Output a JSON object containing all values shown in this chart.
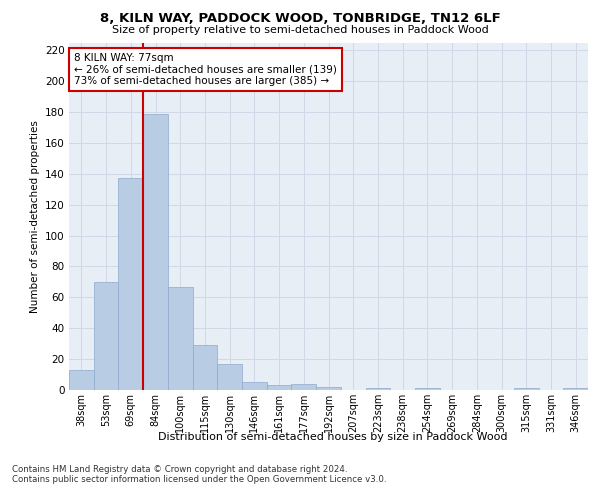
{
  "title": "8, KILN WAY, PADDOCK WOOD, TONBRIDGE, TN12 6LF",
  "subtitle": "Size of property relative to semi-detached houses in Paddock Wood",
  "xlabel": "Distribution of semi-detached houses by size in Paddock Wood",
  "ylabel": "Number of semi-detached properties",
  "categories": [
    "38sqm",
    "53sqm",
    "69sqm",
    "84sqm",
    "100sqm",
    "115sqm",
    "130sqm",
    "146sqm",
    "161sqm",
    "177sqm",
    "192sqm",
    "207sqm",
    "223sqm",
    "238sqm",
    "254sqm",
    "269sqm",
    "284sqm",
    "300sqm",
    "315sqm",
    "331sqm",
    "346sqm"
  ],
  "values": [
    13,
    70,
    137,
    179,
    67,
    29,
    17,
    5,
    3,
    4,
    2,
    0,
    1,
    0,
    1,
    0,
    0,
    0,
    1,
    0,
    1
  ],
  "bar_color": "#b8cce4",
  "bar_edge_color": "#8eaacc",
  "grid_color": "#d0d8e8",
  "background_color": "#e8eef5",
  "red_line_x": 2.5,
  "annotation_text": "8 KILN WAY: 77sqm\n← 26% of semi-detached houses are smaller (139)\n73% of semi-detached houses are larger (385) →",
  "annotation_box_color": "#ffffff",
  "annotation_edge_color": "#cc0000",
  "ylim": [
    0,
    225
  ],
  "yticks": [
    0,
    20,
    40,
    60,
    80,
    100,
    120,
    140,
    160,
    180,
    200,
    220
  ],
  "footer": "Contains HM Land Registry data © Crown copyright and database right 2024.\nContains public sector information licensed under the Open Government Licence v3.0."
}
